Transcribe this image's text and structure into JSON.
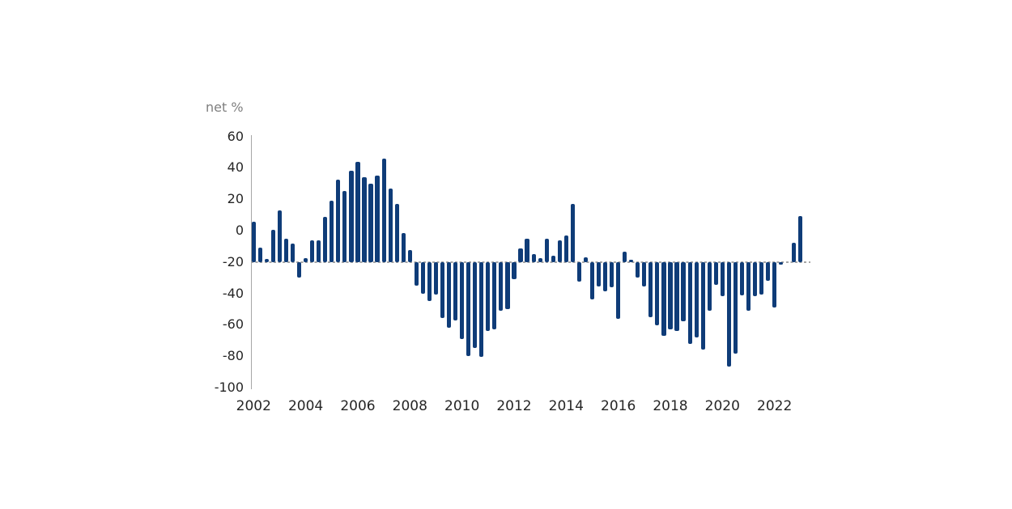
{
  "chart": {
    "unit_label": "net %",
    "colors": {
      "bar": "#0f3c78",
      "axis": "#a6a6a6",
      "baseline_dash": "#a6a6a6",
      "unit_label_text": "#7f7f7f",
      "tick_text": "#262626",
      "background": "#ffffff"
    }
  },
  "chart_data": {
    "type": "bar",
    "title": "",
    "xlabel": "",
    "ylabel": "net %",
    "ylim": [
      -100,
      60
    ],
    "y_ticks": [
      60,
      40,
      20,
      0,
      -20,
      -40,
      -60,
      -80,
      -100
    ],
    "x_tick_years": [
      "2002",
      "2004",
      "2006",
      "2008",
      "2010",
      "2012",
      "2014",
      "2016",
      "2018",
      "2020",
      "2022"
    ],
    "baseline_value": -20,
    "baseline_style": "dashed",
    "grid": false,
    "legend": "none",
    "frequency": "quarterly",
    "series": [
      {
        "q": "2002 Q1",
        "v": 5.5
      },
      {
        "q": "2002 Q2",
        "v": -11
      },
      {
        "q": "2002 Q3",
        "v": -18
      },
      {
        "q": "2002 Q4",
        "v": 0.5
      },
      {
        "q": "2003 Q1",
        "v": 13
      },
      {
        "q": "2003 Q2",
        "v": -5
      },
      {
        "q": "2003 Q3",
        "v": -8
      },
      {
        "q": "2003 Q4",
        "v": -30
      },
      {
        "q": "2004 Q1",
        "v": -17.5
      },
      {
        "q": "2004 Q2",
        "v": -6
      },
      {
        "q": "2004 Q3",
        "v": -6
      },
      {
        "q": "2004 Q4",
        "v": 9
      },
      {
        "q": "2005 Q1",
        "v": 19
      },
      {
        "q": "2005 Q2",
        "v": 32.5
      },
      {
        "q": "2005 Q3",
        "v": 25.5
      },
      {
        "q": "2005 Q4",
        "v": 38
      },
      {
        "q": "2006 Q1",
        "v": 44
      },
      {
        "q": "2006 Q2",
        "v": 34
      },
      {
        "q": "2006 Q3",
        "v": 30
      },
      {
        "q": "2006 Q4",
        "v": 35
      },
      {
        "q": "2007 Q1",
        "v": 46
      },
      {
        "q": "2007 Q2",
        "v": 27
      },
      {
        "q": "2007 Q3",
        "v": 17
      },
      {
        "q": "2007 Q4",
        "v": -1.5
      },
      {
        "q": "2008 Q1",
        "v": -12.5
      },
      {
        "q": "2008 Q2",
        "v": -35
      },
      {
        "q": "2008 Q3",
        "v": -40
      },
      {
        "q": "2008 Q4",
        "v": -45
      },
      {
        "q": "2009 Q1",
        "v": -40.5
      },
      {
        "q": "2009 Q2",
        "v": -55.5
      },
      {
        "q": "2009 Q3",
        "v": -62
      },
      {
        "q": "2009 Q4",
        "v": -57
      },
      {
        "q": "2010 Q1",
        "v": -69
      },
      {
        "q": "2010 Q2",
        "v": -80
      },
      {
        "q": "2010 Q3",
        "v": -74.5
      },
      {
        "q": "2010 Q4",
        "v": -80.5
      },
      {
        "q": "2011 Q1",
        "v": -64
      },
      {
        "q": "2011 Q2",
        "v": -63
      },
      {
        "q": "2011 Q3",
        "v": -51
      },
      {
        "q": "2011 Q4",
        "v": -50
      },
      {
        "q": "2012 Q1",
        "v": -31
      },
      {
        "q": "2012 Q2",
        "v": -11.5
      },
      {
        "q": "2012 Q3",
        "v": -5
      },
      {
        "q": "2012 Q4",
        "v": -15
      },
      {
        "q": "2013 Q1",
        "v": -17.5
      },
      {
        "q": "2013 Q2",
        "v": -5
      },
      {
        "q": "2013 Q3",
        "v": -16
      },
      {
        "q": "2013 Q4",
        "v": -6
      },
      {
        "q": "2014 Q1",
        "v": -3
      },
      {
        "q": "2014 Q2",
        "v": 17
      },
      {
        "q": "2014 Q3",
        "v": -32.5
      },
      {
        "q": "2014 Q4",
        "v": -17
      },
      {
        "q": "2015 Q1",
        "v": -44
      },
      {
        "q": "2015 Q2",
        "v": -35.5
      },
      {
        "q": "2015 Q3",
        "v": -38.5
      },
      {
        "q": "2015 Q4",
        "v": -36
      },
      {
        "q": "2016 Q1",
        "v": -56
      },
      {
        "q": "2016 Q2",
        "v": -13.5
      },
      {
        "q": "2016 Q3",
        "v": -18.5
      },
      {
        "q": "2016 Q4",
        "v": -30
      },
      {
        "q": "2017 Q1",
        "v": -35.5
      },
      {
        "q": "2017 Q2",
        "v": -55
      },
      {
        "q": "2017 Q3",
        "v": -60.5
      },
      {
        "q": "2017 Q4",
        "v": -67
      },
      {
        "q": "2018 Q1",
        "v": -63
      },
      {
        "q": "2018 Q2",
        "v": -64
      },
      {
        "q": "2018 Q3",
        "v": -57.5
      },
      {
        "q": "2018 Q4",
        "v": -72
      },
      {
        "q": "2019 Q1",
        "v": -68
      },
      {
        "q": "2019 Q2",
        "v": -76
      },
      {
        "q": "2019 Q3",
        "v": -51
      },
      {
        "q": "2019 Q4",
        "v": -34.5
      },
      {
        "q": "2020 Q1",
        "v": -41.5
      },
      {
        "q": "2020 Q2",
        "v": -86.5
      },
      {
        "q": "2020 Q3",
        "v": -78.5
      },
      {
        "q": "2020 Q4",
        "v": -41
      },
      {
        "q": "2021 Q1",
        "v": -51
      },
      {
        "q": "2021 Q2",
        "v": -42
      },
      {
        "q": "2021 Q3",
        "v": -40.5
      },
      {
        "q": "2021 Q4",
        "v": -32
      },
      {
        "q": "2022 Q1",
        "v": -49
      },
      {
        "q": "2022 Q2",
        "v": -21.5
      },
      {
        "q": "2022 Q3",
        "v": -20
      },
      {
        "q": "2022 Q4",
        "v": -7.5
      },
      {
        "q": "2023 Q1",
        "v": 9.5
      }
    ]
  }
}
